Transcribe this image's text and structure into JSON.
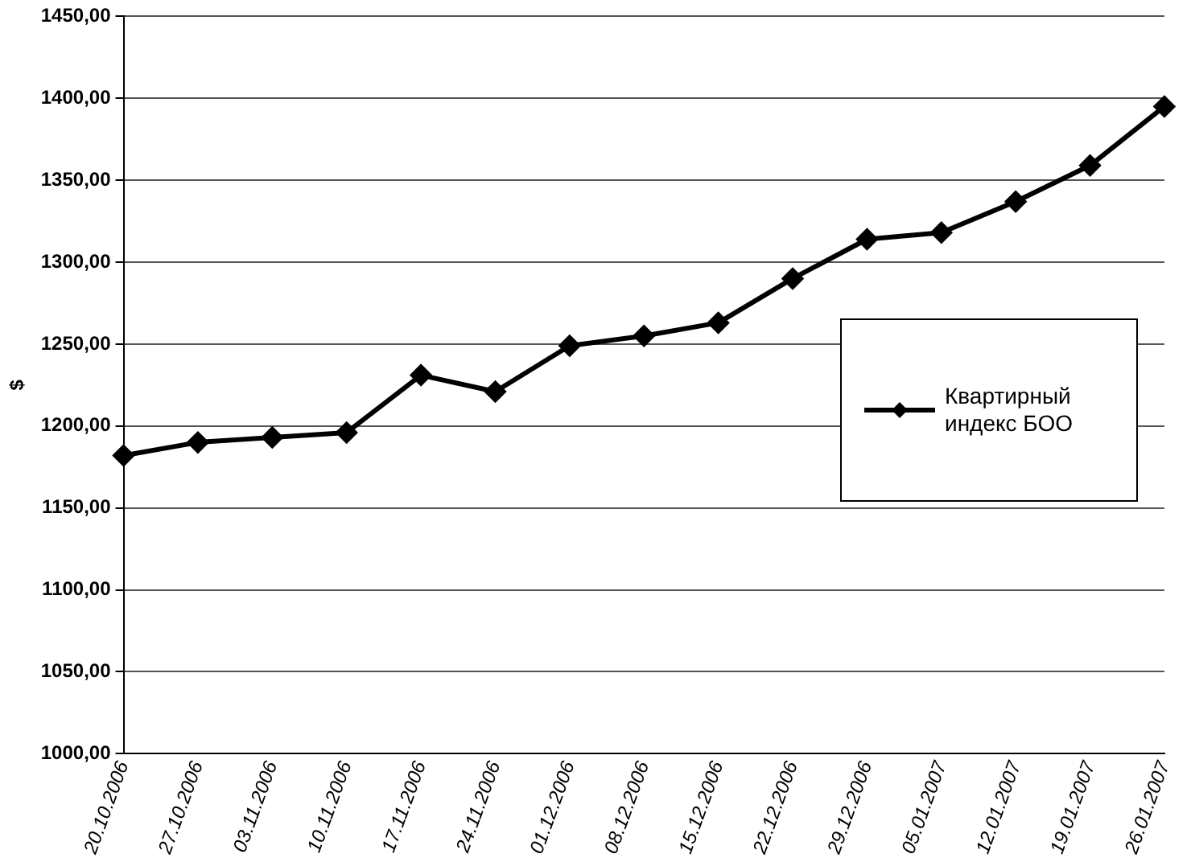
{
  "chart_data": {
    "type": "line",
    "ylabel": "$",
    "categories": [
      "20.10.2006",
      "27.10.2006",
      "03.11.2006",
      "10.11.2006",
      "17.11.2006",
      "24.11.2006",
      "01.12.2006",
      "08.12.2006",
      "15.12.2006",
      "22.12.2006",
      "29.12.2006",
      "05.01.2007",
      "12.01.2007",
      "19.01.2007",
      "26.01.2007"
    ],
    "series": [
      {
        "name": "Квартирный индекс БОО",
        "color": "#000000",
        "values": [
          1182,
          1190,
          1193,
          1196,
          1231,
          1221,
          1249,
          1255,
          1263,
          1290,
          1314,
          1318,
          1337,
          1359,
          1395
        ]
      }
    ],
    "ylim": [
      1000,
      1450
    ],
    "yticks": [
      {
        "value": 1000,
        "label": "1000,00"
      },
      {
        "value": 1050,
        "label": "1050,00"
      },
      {
        "value": 1100,
        "label": "1100,00"
      },
      {
        "value": 1150,
        "label": "1150,00"
      },
      {
        "value": 1200,
        "label": "1200,00"
      },
      {
        "value": 1250,
        "label": "1250,00"
      },
      {
        "value": 1300,
        "label": "1300,00"
      },
      {
        "value": 1350,
        "label": "1350,00"
      },
      {
        "value": 1400,
        "label": "1400,00"
      },
      {
        "value": 1450,
        "label": "1450,00"
      }
    ],
    "grid": "y",
    "legend": "right",
    "marker": "diamond",
    "line_style": "solid"
  }
}
